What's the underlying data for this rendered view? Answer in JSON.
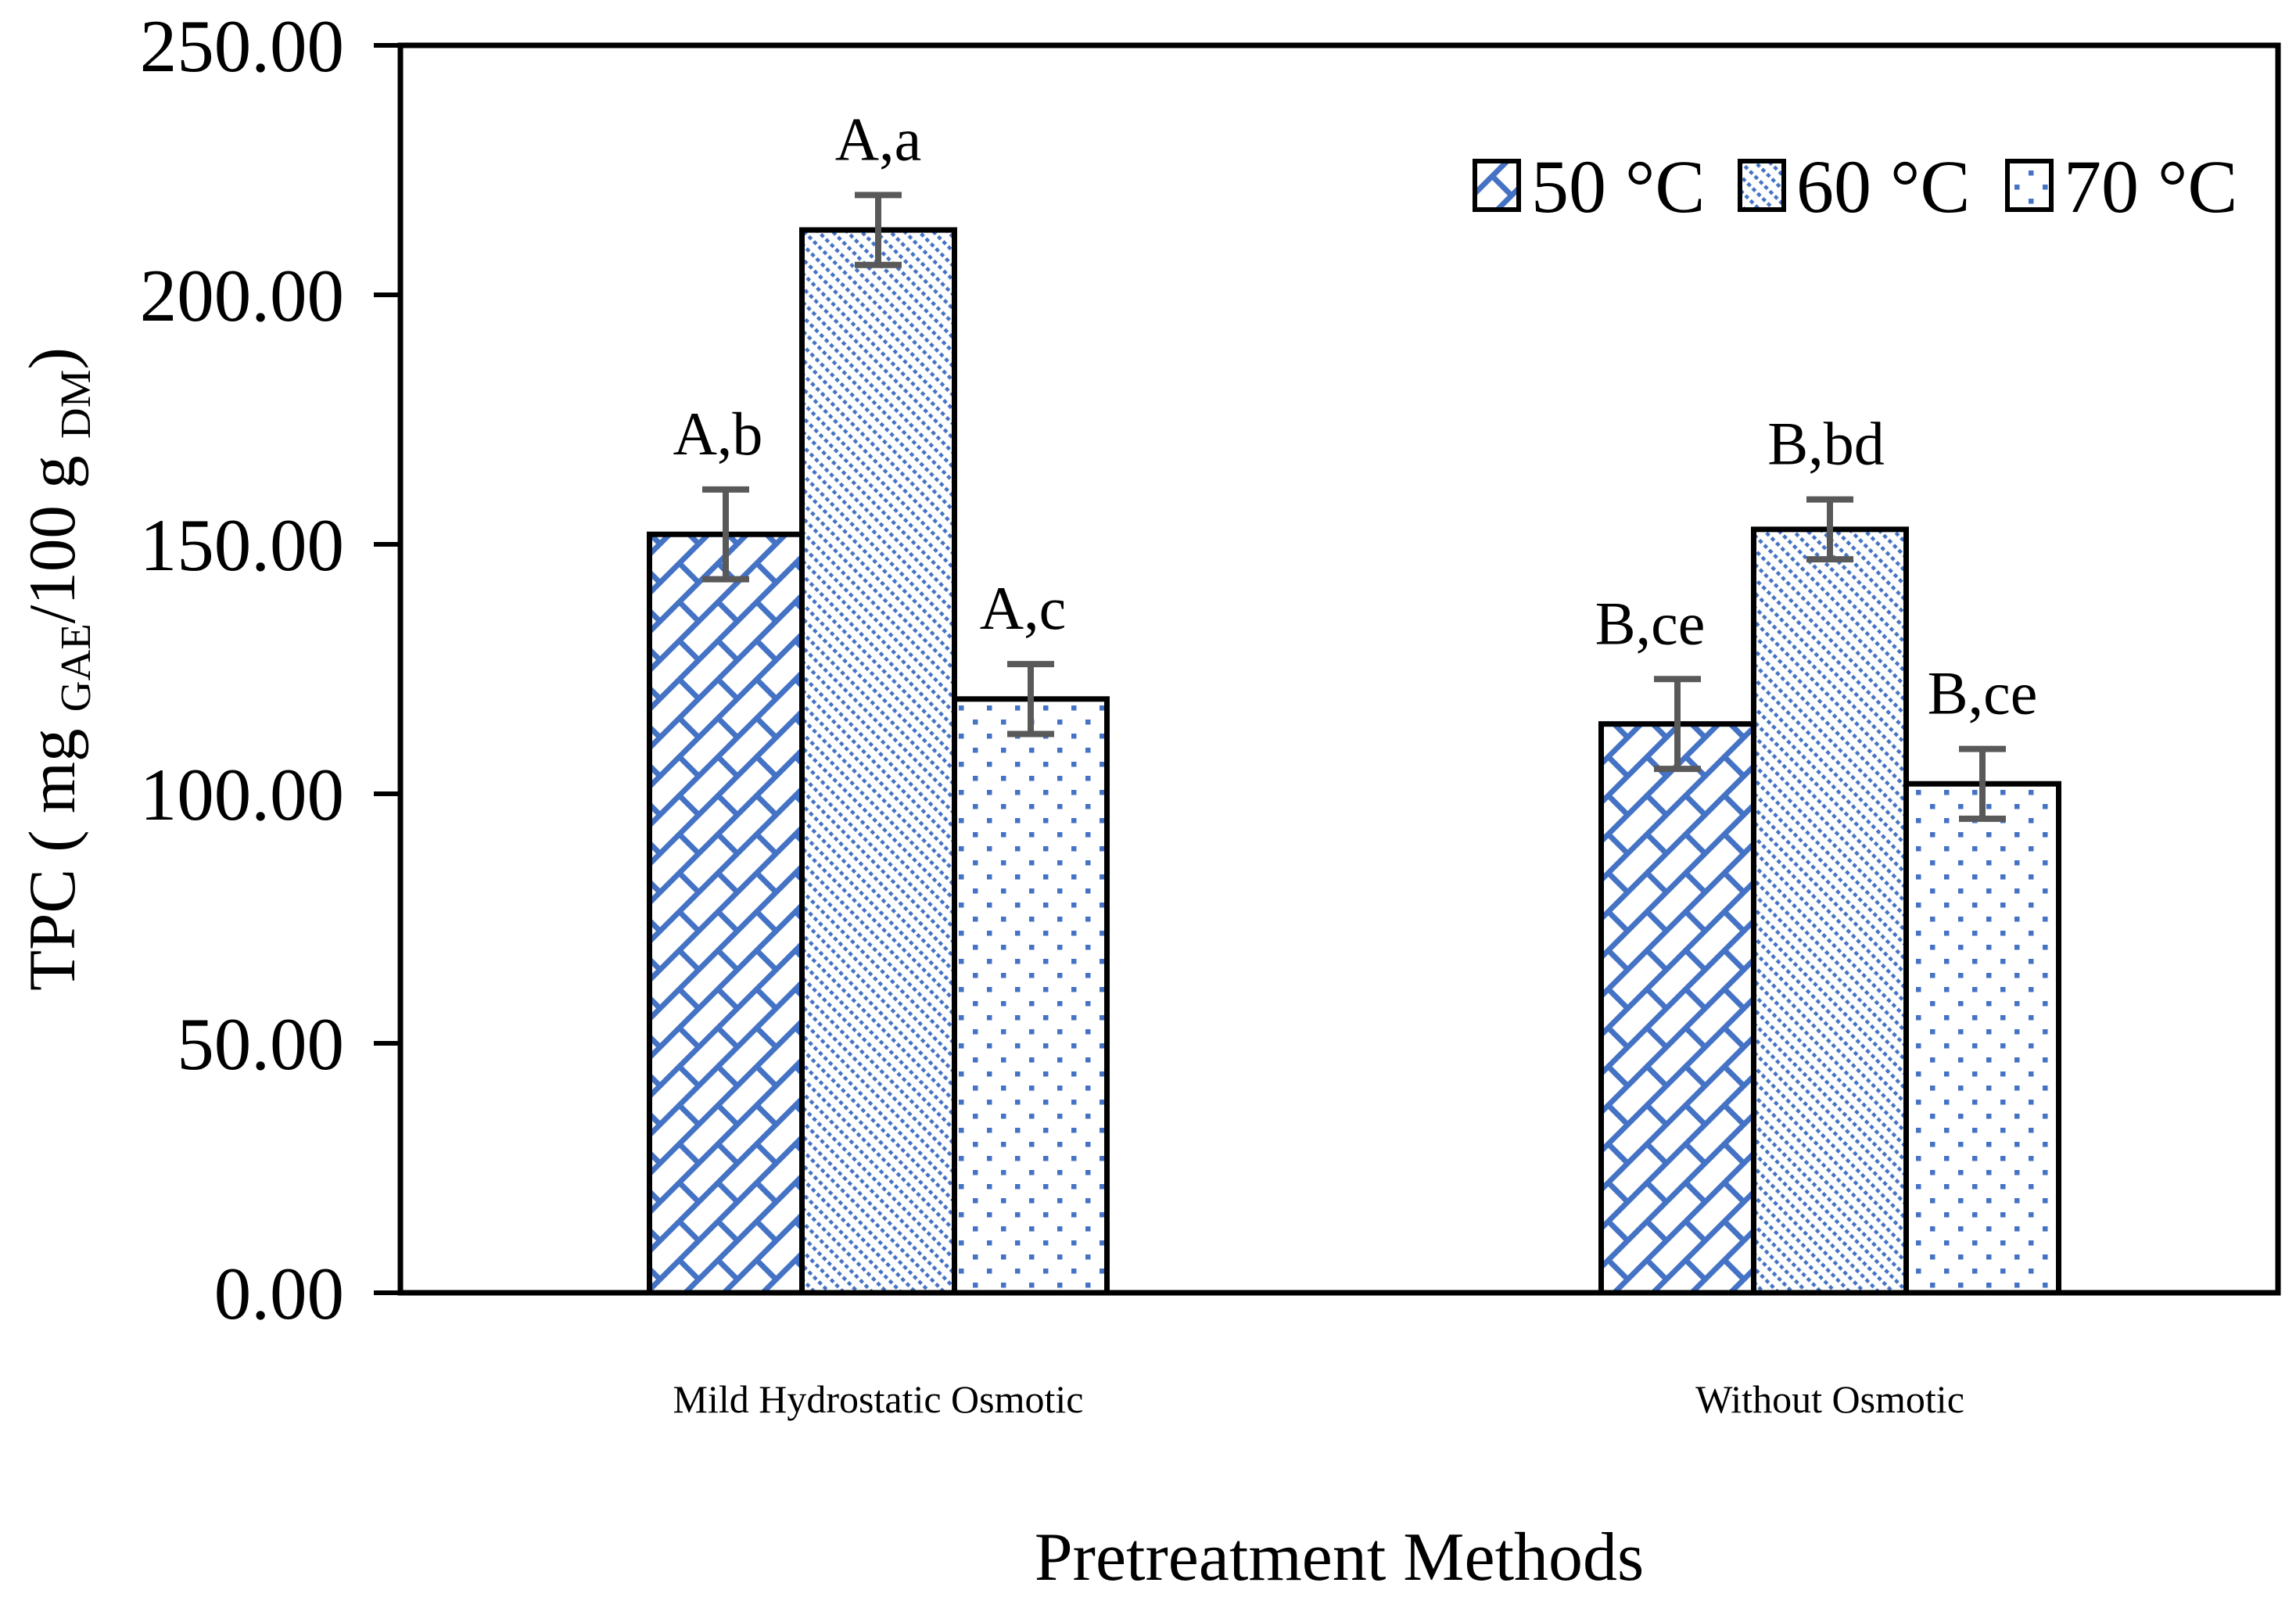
{
  "chart_data": {
    "type": "bar",
    "title": "",
    "xlabel": "Pretreatment Methods",
    "ylabel": "TPC ( mg GAE/100 g DM)",
    "ylabel_parts": [
      {
        "text": "TPC ( mg ",
        "sub": false
      },
      {
        "text": "GAE",
        "sub": true
      },
      {
        "text": "/100 g ",
        "sub": false
      },
      {
        "text": "DM",
        "sub": true
      },
      {
        "text": ")",
        "sub": false
      }
    ],
    "categories": [
      "Mild Hydrostatic Osmotic",
      "Without Osmotic"
    ],
    "series": [
      {
        "name": "50 °C",
        "pattern": "diagonal-brick",
        "values": [
          152,
          114
        ],
        "errors": [
          9,
          9
        ],
        "annotations": [
          "A,b",
          "B,ce"
        ]
      },
      {
        "name": "60 °C",
        "pattern": "downward-diagonal",
        "values": [
          213,
          153
        ],
        "errors": [
          7,
          6
        ],
        "annotations": [
          "A,a",
          "B,bd"
        ]
      },
      {
        "name": "70 °C",
        "pattern": "sparse-dots",
        "values": [
          119,
          102
        ],
        "errors": [
          7,
          7
        ],
        "annotations": [
          "A,c",
          "B,ce"
        ]
      }
    ],
    "ylim": [
      0,
      250
    ],
    "ytick_step": 50,
    "ytick_labels": [
      "0.00",
      "50.00",
      "100.00",
      "150.00",
      "200.00",
      "250.00"
    ],
    "legend_position": "top-right",
    "grid": false,
    "colors": {
      "pattern_blue": "#4472C4",
      "error_bar": "#595959",
      "axis": "#000000",
      "text": "#000000",
      "background": "#FFFFFF"
    }
  }
}
